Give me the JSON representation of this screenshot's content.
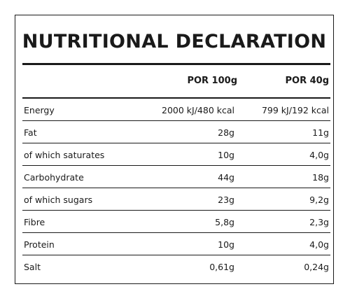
{
  "title": "NUTRITIONAL DECLARATION",
  "columns": [
    "POR 100g",
    "POR 40g"
  ],
  "rows": [
    {
      "label": "Energy",
      "per100": "2000 kJ/480 kcal",
      "per40": "799 kJ/192 kcal"
    },
    {
      "label": "Fat",
      "per100": "28g",
      "per40": "11g"
    },
    {
      "label": "of which saturates",
      "per100": "10g",
      "per40": "4,0g"
    },
    {
      "label": "Carbohydrate",
      "per100": "44g",
      "per40": "18g"
    },
    {
      "label": "of which sugars",
      "per100": "23g",
      "per40": "9,2g"
    },
    {
      "label": "Fibre",
      "per100": "5,8g",
      "per40": "2,3g"
    },
    {
      "label": "Protein",
      "per100": "10g",
      "per40": "4,0g"
    },
    {
      "label": "Salt",
      "per100": "0,61g",
      "per40": "0,24g"
    }
  ]
}
